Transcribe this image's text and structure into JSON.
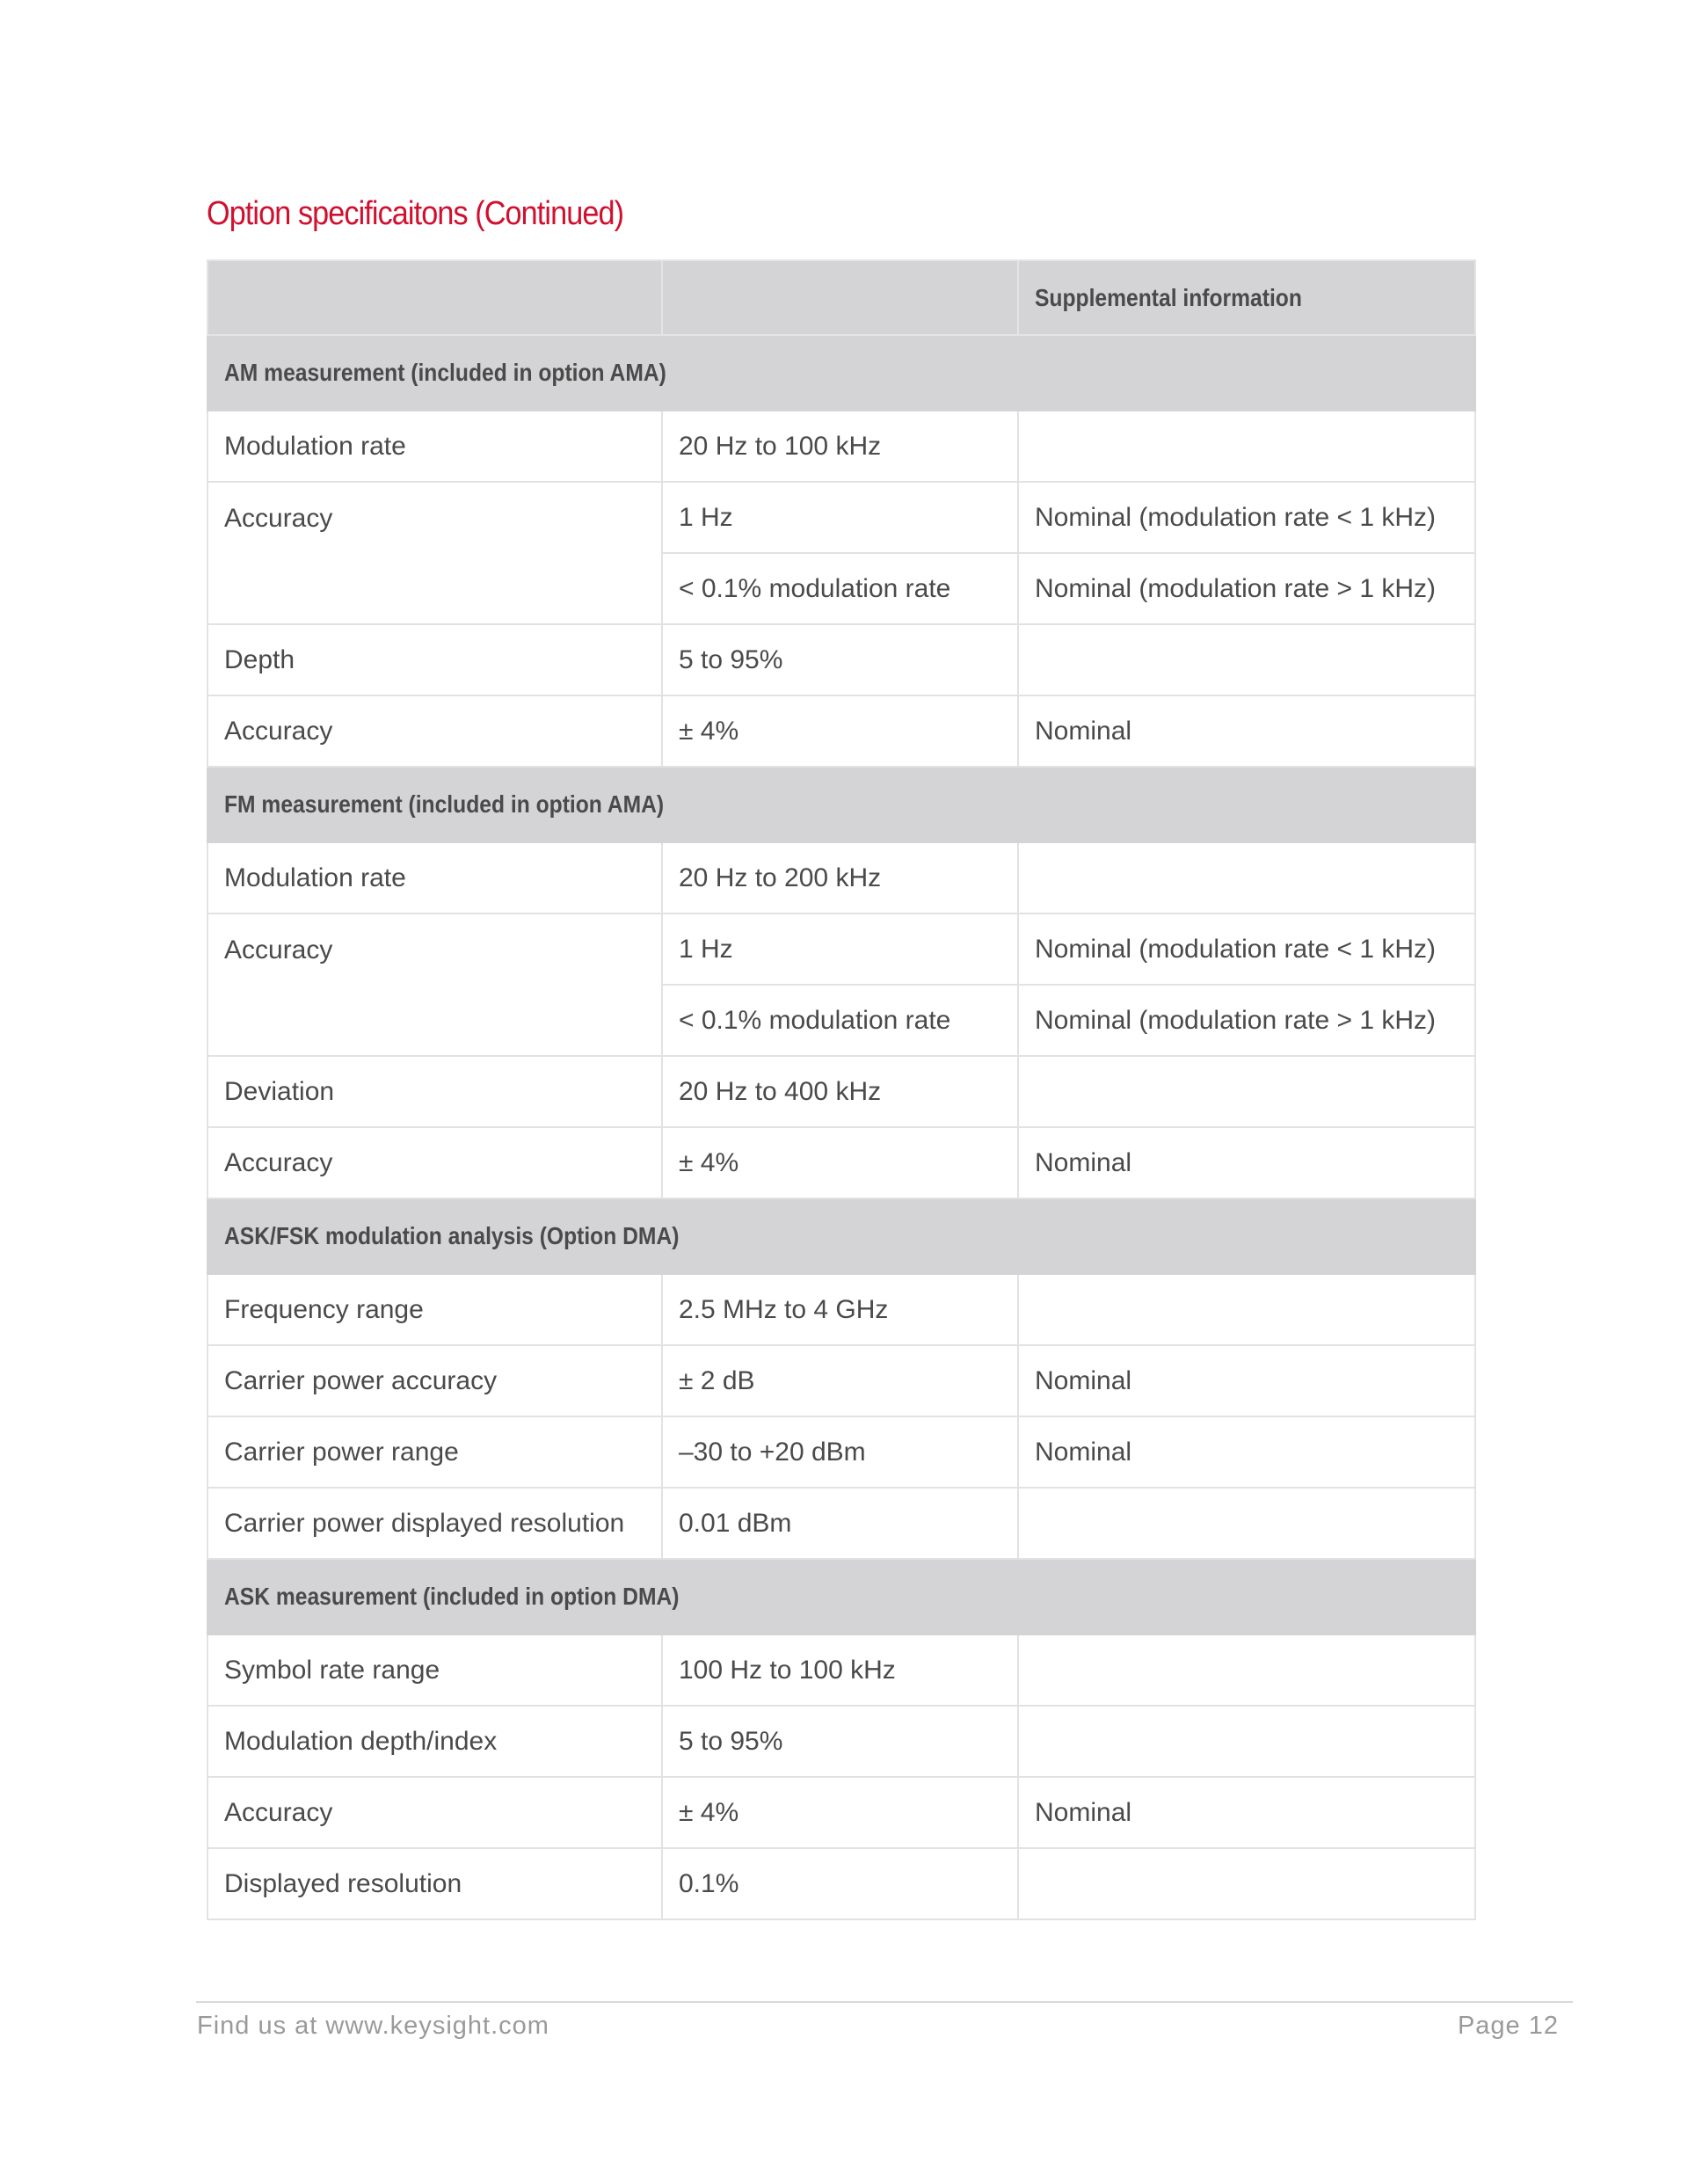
{
  "title": "Option specificaitons (Continued)",
  "table": {
    "headers": [
      "",
      "",
      "Supplemental information"
    ],
    "sections": [
      {
        "title": "AM measurement (included in option AMA)",
        "rows": [
          {
            "label": "Modulation rate",
            "values": [
              [
                "20 Hz to 100 kHz",
                ""
              ]
            ]
          },
          {
            "label": "Accuracy",
            "values": [
              [
                "1 Hz",
                "Nominal (modulation rate < 1 kHz)"
              ],
              [
                "< 0.1% modulation rate",
                "Nominal (modulation rate > 1 kHz)"
              ]
            ]
          },
          {
            "label": "Depth",
            "values": [
              [
                "5 to 95%",
                ""
              ]
            ]
          },
          {
            "label": "Accuracy",
            "values": [
              [
                "± 4%",
                "Nominal"
              ]
            ]
          }
        ]
      },
      {
        "title": "FM measurement (included in option AMA)",
        "rows": [
          {
            "label": "Modulation rate",
            "values": [
              [
                "20 Hz to 200 kHz",
                ""
              ]
            ]
          },
          {
            "label": "Accuracy",
            "values": [
              [
                "1 Hz",
                "Nominal (modulation rate < 1 kHz)"
              ],
              [
                "< 0.1% modulation rate",
                "Nominal (modulation rate > 1 kHz)"
              ]
            ]
          },
          {
            "label": "Deviation",
            "values": [
              [
                "20 Hz to 400 kHz",
                ""
              ]
            ]
          },
          {
            "label": "Accuracy",
            "values": [
              [
                "± 4%",
                "Nominal"
              ]
            ]
          }
        ]
      },
      {
        "title": "ASK/FSK modulation analysis (Option DMA)",
        "rows": [
          {
            "label": "Frequency range",
            "values": [
              [
                "2.5 MHz to 4 GHz",
                ""
              ]
            ]
          },
          {
            "label": "Carrier power accuracy",
            "values": [
              [
                "± 2 dB",
                "Nominal"
              ]
            ]
          },
          {
            "label": "Carrier power range",
            "values": [
              [
                "–30 to +20 dBm",
                "Nominal"
              ]
            ]
          },
          {
            "label": "Carrier power displayed resolution",
            "values": [
              [
                "0.01 dBm",
                ""
              ]
            ]
          }
        ]
      },
      {
        "title": "ASK measurement (included in option DMA)",
        "rows": [
          {
            "label": "Symbol rate range",
            "values": [
              [
                "100 Hz to 100 kHz",
                ""
              ]
            ]
          },
          {
            "label": "Modulation depth/index",
            "values": [
              [
                "5 to 95%",
                ""
              ]
            ]
          },
          {
            "label": "Accuracy",
            "values": [
              [
                "± 4%",
                "Nominal"
              ]
            ]
          },
          {
            "label": "Displayed resolution",
            "values": [
              [
                "0.1%",
                ""
              ]
            ]
          }
        ]
      }
    ]
  },
  "footer": {
    "left": "Find us at www.keysight.com",
    "right": "Page 12"
  },
  "colors": {
    "title": "#d0102e",
    "header_bg": "#d4d4d6",
    "text": "#4a4a4a"
  }
}
